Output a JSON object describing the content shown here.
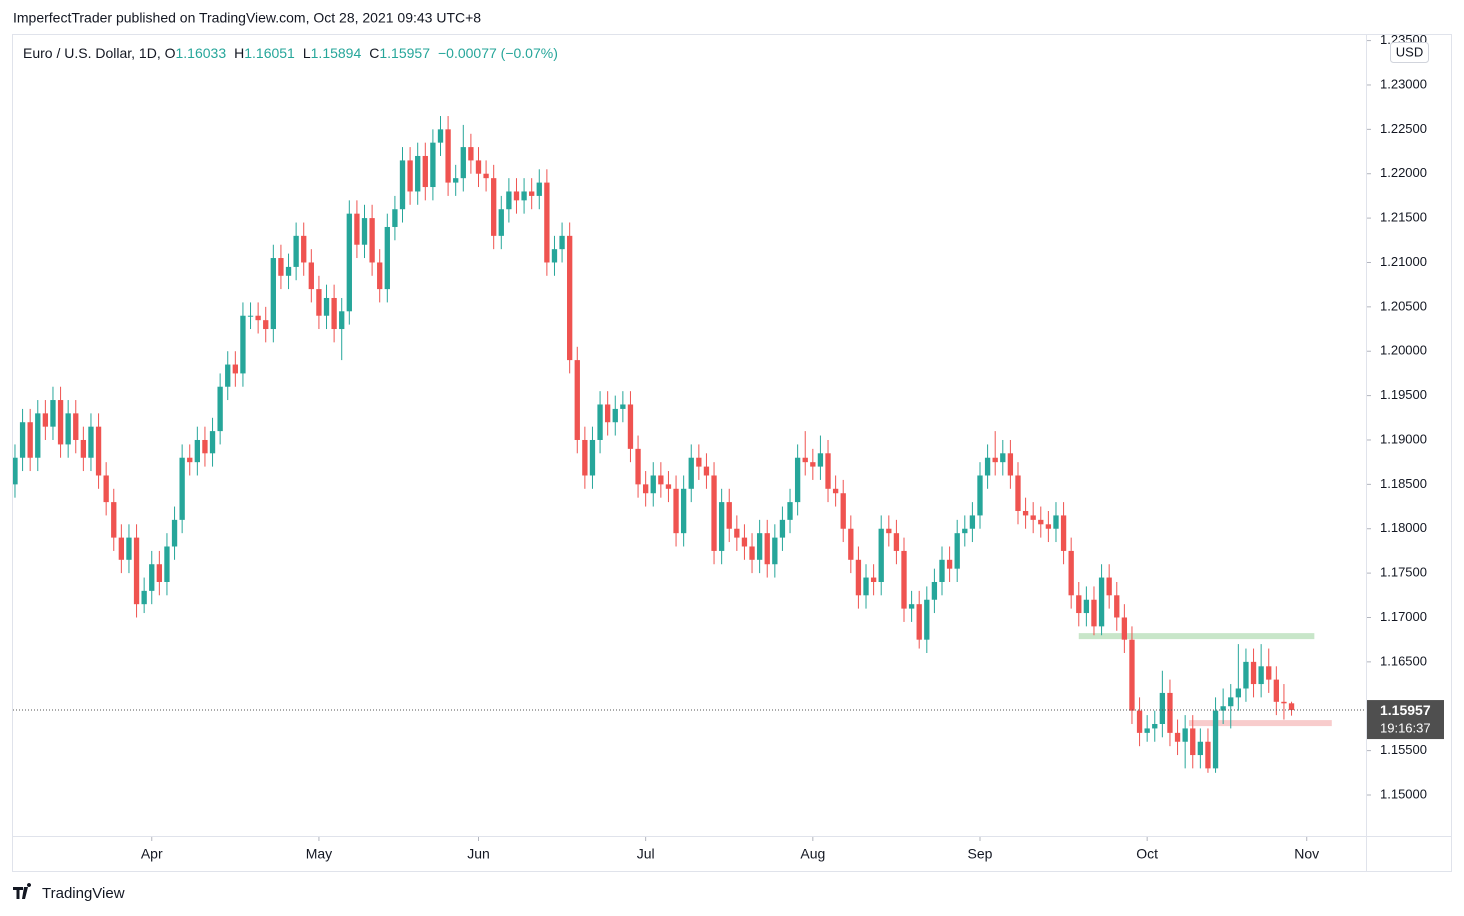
{
  "chart_data": {
    "type": "candlestick",
    "published": "ImperfectTrader published on TradingView.com, Oct 28, 2021 09:43 UTC+8",
    "symbol": "Euro / U.S. Dollar, 1D, ",
    "ohlc_labels": [
      "O",
      "H",
      "L",
      "C"
    ],
    "change": "−0.00077 (−0.07%)",
    "currency": "USD",
    "countdown": "19:16:37",
    "brand": "TradingView",
    "up_color": "#26a69a",
    "down_color": "#ef5350",
    "grid": false,
    "open": [
      1.185,
      1.188,
      1.192,
      1.188,
      1.193,
      1.1915,
      1.1945,
      1.1895,
      1.193,
      1.19,
      1.188,
      1.1915,
      1.186,
      1.183,
      1.179,
      1.1765,
      1.179,
      1.1715,
      1.173,
      1.176,
      1.174,
      1.178,
      1.181,
      1.188,
      1.1875,
      1.19,
      1.1885,
      1.191,
      1.196,
      1.1985,
      1.1975,
      1.204,
      1.204,
      1.2035,
      1.2025,
      1.2105,
      1.2085,
      1.2095,
      1.213,
      1.21,
      1.207,
      1.204,
      1.206,
      1.2025,
      1.2045,
      1.2155,
      1.212,
      1.215,
      1.21,
      1.207,
      1.214,
      1.216,
      1.2215,
      1.218,
      1.222,
      1.2185,
      1.2235,
      1.225,
      1.219,
      1.2195,
      1.223,
      1.2215,
      1.22,
      1.2195,
      1.213,
      1.216,
      1.218,
      1.217,
      1.218,
      1.2175,
      1.219,
      1.21,
      1.2115,
      1.213,
      1.199,
      1.19,
      1.186,
      1.19,
      1.194,
      1.192,
      1.1935,
      1.194,
      1.189,
      1.185,
      1.184,
      1.186,
      1.185,
      1.1845,
      1.1795,
      1.1845,
      1.188,
      1.187,
      1.186,
      1.1775,
      1.183,
      1.18,
      1.179,
      1.178,
      1.1765,
      1.1795,
      1.176,
      1.179,
      1.181,
      1.183,
      1.188,
      1.1875,
      1.187,
      1.1885,
      1.1845,
      1.184,
      1.18,
      1.1765,
      1.1725,
      1.1745,
      1.174,
      1.18,
      1.1795,
      1.1775,
      1.171,
      1.1715,
      1.1675,
      1.172,
      1.174,
      1.1765,
      1.1755,
      1.1795,
      1.18,
      1.1815,
      1.186,
      1.188,
      1.1875,
      1.1885,
      1.186,
      1.182,
      1.1815,
      1.181,
      1.1805,
      1.18,
      1.1815,
      1.1775,
      1.1725,
      1.1705,
      1.172,
      1.169,
      1.1745,
      1.1725,
      1.17,
      1.1675,
      1.1595,
      1.157,
      1.1575,
      1.158,
      1.1615,
      1.157,
      1.156,
      1.1575,
      1.1545,
      1.156,
      1.153,
      1.1595,
      1.16,
      1.161,
      1.162,
      1.165,
      1.1625,
      1.1645,
      1.163,
      1.1605,
      1.16033
    ],
    "high": [
      1.1895,
      1.1935,
      1.1935,
      1.1945,
      1.1945,
      1.196,
      1.196,
      1.1945,
      1.1945,
      1.1915,
      1.193,
      1.193,
      1.1875,
      1.1845,
      1.1805,
      1.1805,
      1.1805,
      1.1745,
      1.1775,
      1.1775,
      1.1795,
      1.1825,
      1.1895,
      1.1895,
      1.1915,
      1.1915,
      1.1925,
      1.1975,
      1.2,
      1.2,
      1.2055,
      1.2055,
      1.2055,
      1.205,
      1.212,
      1.212,
      1.211,
      1.2145,
      1.2145,
      1.2115,
      1.2085,
      1.2075,
      1.2075,
      1.206,
      1.217,
      1.217,
      1.2165,
      1.2165,
      1.2115,
      1.2155,
      1.2175,
      1.223,
      1.223,
      1.2235,
      1.2235,
      1.225,
      1.2265,
      1.2265,
      1.221,
      1.2255,
      1.2245,
      1.223,
      1.2215,
      1.221,
      1.2175,
      1.2195,
      1.2195,
      1.2195,
      1.2195,
      1.2205,
      1.2205,
      1.213,
      1.2145,
      1.2145,
      1.2005,
      1.1915,
      1.1915,
      1.1955,
      1.1955,
      1.195,
      1.1955,
      1.1955,
      1.1905,
      1.1865,
      1.1875,
      1.1875,
      1.1865,
      1.186,
      1.186,
      1.1895,
      1.1895,
      1.1885,
      1.1875,
      1.1845,
      1.1845,
      1.1815,
      1.1805,
      1.1795,
      1.181,
      1.181,
      1.1805,
      1.1825,
      1.1845,
      1.1895,
      1.191,
      1.189,
      1.1905,
      1.19,
      1.186,
      1.1855,
      1.1815,
      1.178,
      1.176,
      1.176,
      1.1815,
      1.1815,
      1.181,
      1.179,
      1.173,
      1.173,
      1.1735,
      1.1755,
      1.178,
      1.178,
      1.181,
      1.1815,
      1.183,
      1.1875,
      1.1895,
      1.191,
      1.19,
      1.19,
      1.1875,
      1.1835,
      1.183,
      1.1825,
      1.182,
      1.183,
      1.183,
      1.179,
      1.174,
      1.1735,
      1.1735,
      1.176,
      1.176,
      1.174,
      1.1715,
      1.169,
      1.161,
      1.159,
      1.1595,
      1.164,
      1.163,
      1.1585,
      1.159,
      1.159,
      1.1575,
      1.1575,
      1.161,
      1.162,
      1.1625,
      1.167,
      1.1665,
      1.1665,
      1.167,
      1.1665,
      1.1645,
      1.1625,
      1.16051
    ],
    "low": [
      1.1835,
      1.1865,
      1.1865,
      1.1865,
      1.19,
      1.19,
      1.188,
      1.188,
      1.1885,
      1.1865,
      1.1865,
      1.1845,
      1.1815,
      1.1775,
      1.175,
      1.175,
      1.17,
      1.1705,
      1.1715,
      1.1725,
      1.1725,
      1.1765,
      1.1795,
      1.186,
      1.186,
      1.187,
      1.187,
      1.1895,
      1.1945,
      1.196,
      1.196,
      1.2025,
      1.202,
      1.201,
      1.201,
      1.207,
      1.207,
      1.208,
      1.2085,
      1.2055,
      1.2025,
      1.2025,
      1.201,
      1.199,
      1.203,
      1.2105,
      1.2105,
      1.2085,
      1.2055,
      1.2055,
      1.2125,
      1.2145,
      1.2165,
      1.2165,
      1.217,
      1.217,
      1.222,
      1.2175,
      1.2175,
      1.218,
      1.22,
      1.2185,
      1.218,
      1.2115,
      1.2115,
      1.2145,
      1.2155,
      1.2155,
      1.216,
      1.216,
      1.2085,
      1.2085,
      1.21,
      1.1975,
      1.1885,
      1.1845,
      1.1845,
      1.1885,
      1.1905,
      1.1905,
      1.192,
      1.1875,
      1.1835,
      1.1825,
      1.1825,
      1.1835,
      1.183,
      1.178,
      1.178,
      1.183,
      1.1855,
      1.1845,
      1.176,
      1.176,
      1.1785,
      1.1775,
      1.1765,
      1.175,
      1.175,
      1.1745,
      1.1745,
      1.1775,
      1.1795,
      1.1815,
      1.186,
      1.1855,
      1.1855,
      1.183,
      1.1825,
      1.1785,
      1.175,
      1.171,
      1.171,
      1.1725,
      1.1725,
      1.178,
      1.176,
      1.1695,
      1.1695,
      1.1665,
      1.166,
      1.1705,
      1.1725,
      1.174,
      1.174,
      1.178,
      1.1785,
      1.18,
      1.1845,
      1.186,
      1.186,
      1.1845,
      1.1805,
      1.18,
      1.1795,
      1.179,
      1.1785,
      1.1785,
      1.176,
      1.171,
      1.169,
      1.169,
      1.168,
      1.168,
      1.171,
      1.1685,
      1.166,
      1.158,
      1.1555,
      1.156,
      1.156,
      1.1565,
      1.1555,
      1.1545,
      1.153,
      1.153,
      1.153,
      1.1525,
      1.1525,
      1.158,
      1.1575,
      1.1595,
      1.1605,
      1.161,
      1.161,
      1.1615,
      1.159,
      1.1585,
      1.15894
    ],
    "close": [
      1.188,
      1.192,
      1.188,
      1.193,
      1.1915,
      1.1945,
      1.1895,
      1.193,
      1.19,
      1.188,
      1.1915,
      1.186,
      1.183,
      1.179,
      1.1765,
      1.179,
      1.1715,
      1.173,
      1.176,
      1.174,
      1.178,
      1.181,
      1.188,
      1.1875,
      1.19,
      1.1885,
      1.191,
      1.196,
      1.1985,
      1.1975,
      1.204,
      1.204,
      1.2035,
      1.2025,
      1.2105,
      1.2085,
      1.2095,
      1.213,
      1.21,
      1.207,
      1.204,
      1.206,
      1.2025,
      1.2045,
      1.2155,
      1.212,
      1.215,
      1.21,
      1.207,
      1.214,
      1.216,
      1.2215,
      1.218,
      1.222,
      1.2185,
      1.2235,
      1.225,
      1.219,
      1.2195,
      1.223,
      1.2215,
      1.22,
      1.2195,
      1.213,
      1.216,
      1.218,
      1.217,
      1.218,
      1.2175,
      1.219,
      1.21,
      1.2115,
      1.213,
      1.199,
      1.19,
      1.186,
      1.19,
      1.194,
      1.192,
      1.1935,
      1.194,
      1.189,
      1.185,
      1.184,
      1.186,
      1.185,
      1.1845,
      1.1795,
      1.1845,
      1.188,
      1.187,
      1.186,
      1.1775,
      1.183,
      1.18,
      1.179,
      1.178,
      1.1765,
      1.1795,
      1.176,
      1.179,
      1.181,
      1.183,
      1.188,
      1.1875,
      1.187,
      1.1885,
      1.1845,
      1.184,
      1.18,
      1.1765,
      1.1725,
      1.1745,
      1.174,
      1.18,
      1.1795,
      1.1775,
      1.171,
      1.1715,
      1.1675,
      1.172,
      1.174,
      1.1765,
      1.1755,
      1.1795,
      1.18,
      1.1815,
      1.186,
      1.188,
      1.1875,
      1.1885,
      1.186,
      1.182,
      1.1815,
      1.181,
      1.1805,
      1.18,
      1.1815,
      1.1775,
      1.1725,
      1.1705,
      1.172,
      1.169,
      1.1745,
      1.1725,
      1.17,
      1.1675,
      1.1595,
      1.157,
      1.1575,
      1.158,
      1.1615,
      1.157,
      1.156,
      1.1575,
      1.1545,
      1.156,
      1.153,
      1.1595,
      1.16,
      1.161,
      1.162,
      1.165,
      1.1625,
      1.1645,
      1.163,
      1.1605,
      1.16033,
      1.15957
    ],
    "zones": [
      {
        "level": 1.1679,
        "from": 140,
        "to": 171,
        "color": "#c8e6c9"
      },
      {
        "level": 1.1581,
        "from": 154.5,
        "to": 173.3,
        "color": "#f8cccc"
      }
    ],
    "xlim": [
      -0.26,
      177.8
    ],
    "xticks": [
      {
        "value": 18,
        "label": "Apr"
      },
      {
        "value": 40,
        "label": "May"
      },
      {
        "value": 61,
        "label": "Jun"
      },
      {
        "value": 83,
        "label": "Jul"
      },
      {
        "value": 105,
        "label": "Aug"
      },
      {
        "value": 127,
        "label": "Sep"
      },
      {
        "value": 149,
        "label": "Oct"
      },
      {
        "value": 170,
        "label": "Nov"
      }
    ],
    "ylim": [
      1.14538,
      1.23563
    ],
    "yticks": [
      {
        "value": 1.15,
        "label": "1.15000"
      },
      {
        "value": 1.155,
        "label": "1.15500"
      },
      {
        "value": 1.16,
        "label": "1.16000"
      },
      {
        "value": 1.165,
        "label": "1.16500"
      },
      {
        "value": 1.17,
        "label": "1.17000"
      },
      {
        "value": 1.175,
        "label": "1.17500"
      },
      {
        "value": 1.18,
        "label": "1.18000"
      },
      {
        "value": 1.185,
        "label": "1.18500"
      },
      {
        "value": 1.19,
        "label": "1.19000"
      },
      {
        "value": 1.195,
        "label": "1.19500"
      },
      {
        "value": 1.2,
        "label": "1.20000"
      },
      {
        "value": 1.205,
        "label": "1.20500"
      },
      {
        "value": 1.21,
        "label": "1.21000"
      },
      {
        "value": 1.215,
        "label": "1.21500"
      },
      {
        "value": 1.22,
        "label": "1.22000"
      },
      {
        "value": 1.225,
        "label": "1.22500"
      },
      {
        "value": 1.23,
        "label": "1.23000"
      },
      {
        "value": 1.235,
        "label": "1.23500"
      }
    ]
  }
}
